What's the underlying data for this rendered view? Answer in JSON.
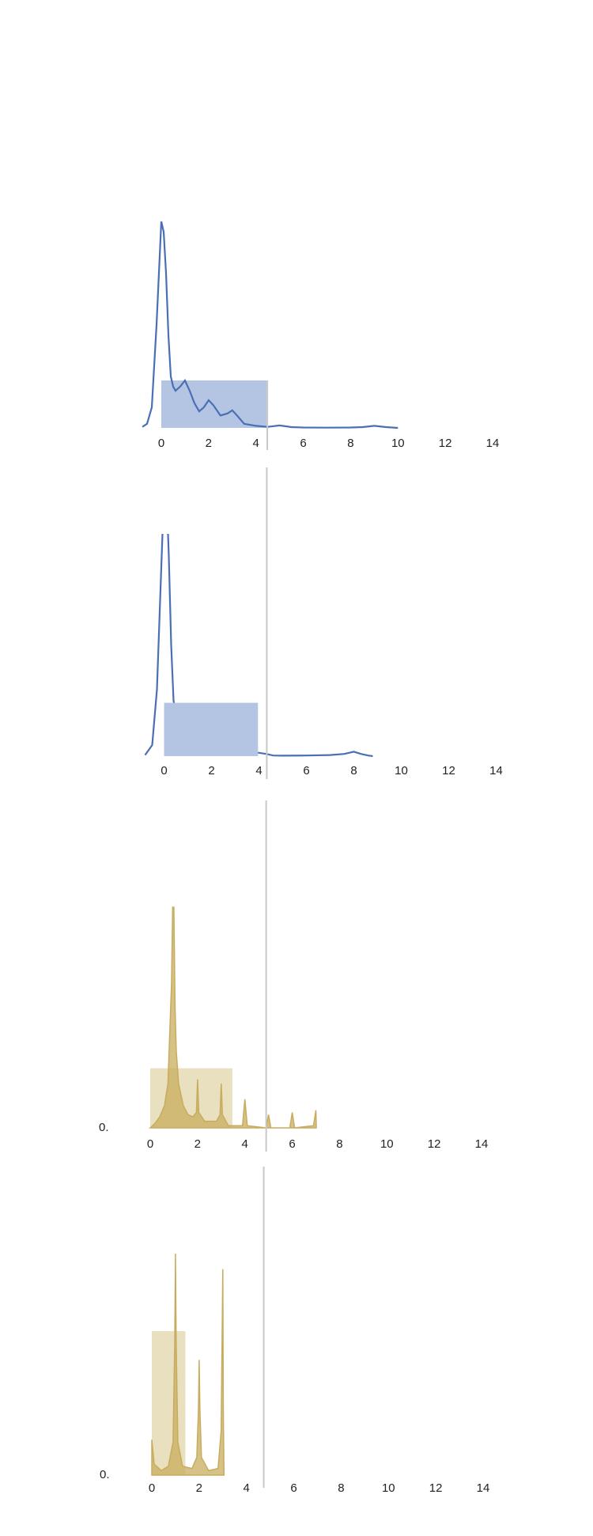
{
  "chart_data": [
    {
      "type": "line",
      "color": "#4a6fb5",
      "box_color": "#b4c5e4",
      "x": [
        -0.8,
        -0.6,
        -0.4,
        -0.2,
        0,
        0.1,
        0.2,
        0.3,
        0.4,
        0.5,
        0.6,
        0.7,
        0.8,
        1.0,
        1.2,
        1.4,
        1.6,
        1.8,
        2.0,
        2.2,
        2.5,
        2.8,
        3.0,
        3.2,
        3.5,
        4.0,
        4.5,
        5.0,
        5.5,
        6,
        7,
        8,
        8.5,
        9,
        9.5,
        10
      ],
      "values": [
        0.005,
        0.02,
        0.1,
        0.5,
        1.0,
        0.95,
        0.75,
        0.45,
        0.25,
        0.2,
        0.18,
        0.19,
        0.2,
        0.23,
        0.18,
        0.12,
        0.08,
        0.1,
        0.134,
        0.11,
        0.06,
        0.07,
        0.085,
        0.06,
        0.02,
        0.01,
        0.005,
        0.012,
        0.004,
        0.002,
        0.001,
        0.002,
        0.004,
        0.01,
        0.004,
        0
      ],
      "xlim": [
        0,
        14
      ],
      "xticks": [
        0,
        2,
        4,
        6,
        8,
        10,
        12,
        14
      ],
      "ylim": [
        0,
        1
      ],
      "range_box": {
        "x": [
          0,
          4.45
        ],
        "top": 0.23
      },
      "reference_x": 4.48
    },
    {
      "type": "line",
      "color": "#4a6fb5",
      "box_color": "#b4c5e4",
      "x": [
        -0.8,
        -0.5,
        -0.3,
        -0.1,
        0,
        0.1,
        0.2,
        0.3,
        0.4,
        0.6,
        0.8,
        1.0,
        1.2,
        1.4,
        1.6,
        1.8,
        2.0,
        2.2,
        2.5,
        2.8,
        3.0,
        3.2,
        3.5,
        4.0,
        4.3,
        4.6,
        5,
        6,
        7,
        7.6,
        8.0,
        8.3,
        8.6,
        8.8
      ],
      "values": [
        0.005,
        0.05,
        0.3,
        0.9,
        1.2,
        1.2,
        0.9,
        0.5,
        0.25,
        0.12,
        0.12,
        0.16,
        0.12,
        0.07,
        0.06,
        0.09,
        0.12,
        0.09,
        0.04,
        0.06,
        0.09,
        0.05,
        0.02,
        0.015,
        0.01,
        0.003,
        0.002,
        0.003,
        0.005,
        0.01,
        0.02,
        0.01,
        0.003,
        0
      ],
      "xlim": [
        0,
        14
      ],
      "xticks": [
        0,
        2,
        4,
        6,
        8,
        10,
        12,
        14
      ],
      "ylim": [
        0,
        1
      ],
      "range_box": {
        "x": [
          0,
          3.96
        ],
        "top": 0.24
      },
      "reference_x": 4.33
    },
    {
      "type": "area",
      "color": "#c8ac5e",
      "box_color": "#e9e0c0",
      "x": [
        0,
        0.2,
        0.4,
        0.6,
        0.75,
        0.85,
        0.9,
        0.95,
        1.0,
        1.05,
        1.1,
        1.2,
        1.4,
        1.6,
        1.8,
        1.95,
        2.0,
        2.05,
        2.3,
        2.8,
        2.95,
        3.0,
        3.05,
        3.3,
        3.9,
        4.0,
        4.1,
        4.9,
        5.0,
        5.1,
        5.9,
        6.0,
        6.1,
        6.9,
        7.0,
        7.02
      ],
      "values": [
        0,
        0.02,
        0.05,
        0.1,
        0.2,
        0.5,
        0.65,
        1.0,
        1.0,
        0.55,
        0.35,
        0.2,
        0.1,
        0.06,
        0.05,
        0.07,
        0.22,
        0.07,
        0.03,
        0.03,
        0.06,
        0.2,
        0.06,
        0.01,
        0.01,
        0.13,
        0.01,
        0,
        0.06,
        0,
        0,
        0.07,
        0,
        0.01,
        0.08,
        0
      ],
      "xlim": [
        0,
        14
      ],
      "xticks": [
        0,
        2,
        4,
        6,
        8,
        10,
        12,
        14
      ],
      "ylim": [
        0,
        1
      ],
      "yticks": [
        {
          "value": 0,
          "label": "0."
        }
      ],
      "range_box": {
        "x": [
          0,
          3.47
        ],
        "top": 0.27
      },
      "reference_x": 4.9
    },
    {
      "type": "area",
      "color": "#c8ac5e",
      "box_color": "#e9e0c0",
      "x": [
        0,
        0.1,
        0.4,
        0.7,
        0.9,
        0.97,
        1.0,
        1.03,
        1.1,
        1.3,
        1.7,
        1.9,
        1.97,
        2.0,
        2.03,
        2.1,
        2.4,
        2.8,
        2.93,
        3.0,
        3.02,
        3.05
      ],
      "values": [
        0.16,
        0.05,
        0.02,
        0.04,
        0.15,
        0.6,
        1.0,
        0.6,
        0.15,
        0.04,
        0.03,
        0.08,
        0.3,
        0.52,
        0.3,
        0.08,
        0.02,
        0.03,
        0.2,
        0.93,
        0.3,
        0
      ],
      "xlim": [
        0,
        14
      ],
      "xticks": [
        0,
        2,
        4,
        6,
        8,
        10,
        12,
        14
      ],
      "ylim": [
        0,
        1
      ],
      "yticks": [
        {
          "value": 0,
          "label": "0."
        }
      ],
      "range_box": {
        "x": [
          0,
          1.42
        ],
        "top": 0.65
      },
      "reference_x": 4.73
    }
  ]
}
